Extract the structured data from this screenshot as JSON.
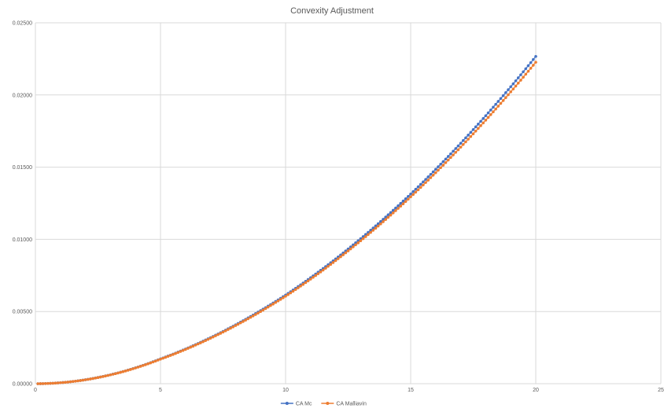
{
  "chart_data": {
    "type": "scatter",
    "title": "Convexity Adjustment",
    "xlabel": "",
    "ylabel": "",
    "xlim": [
      0,
      25
    ],
    "ylim": [
      0,
      0.025
    ],
    "x_ticks": [
      "0",
      "5",
      "10",
      "15",
      "20",
      "25"
    ],
    "y_ticks": [
      "0.00000",
      "0.00500",
      "0.01000",
      "0.01500",
      "0.02000",
      "0.02500"
    ],
    "grid": true,
    "legend_position": "bottom",
    "x_start": 0.1,
    "x_end": 20,
    "x_step": 0.1,
    "series": [
      {
        "name": "CA Mc",
        "color": "#4472c4",
        "curve": [
          [
            0,
            0
          ],
          [
            5,
            0.00172
          ],
          [
            10,
            0.00614
          ],
          [
            15,
            0.01314
          ],
          [
            20,
            0.02267
          ]
        ]
      },
      {
        "name": "CA Malliavin",
        "color": "#ed7d31",
        "curve": [
          [
            0,
            0
          ],
          [
            5,
            0.0017
          ],
          [
            10,
            0.00606
          ],
          [
            15,
            0.01294
          ],
          [
            20,
            0.02227
          ]
        ]
      }
    ]
  }
}
